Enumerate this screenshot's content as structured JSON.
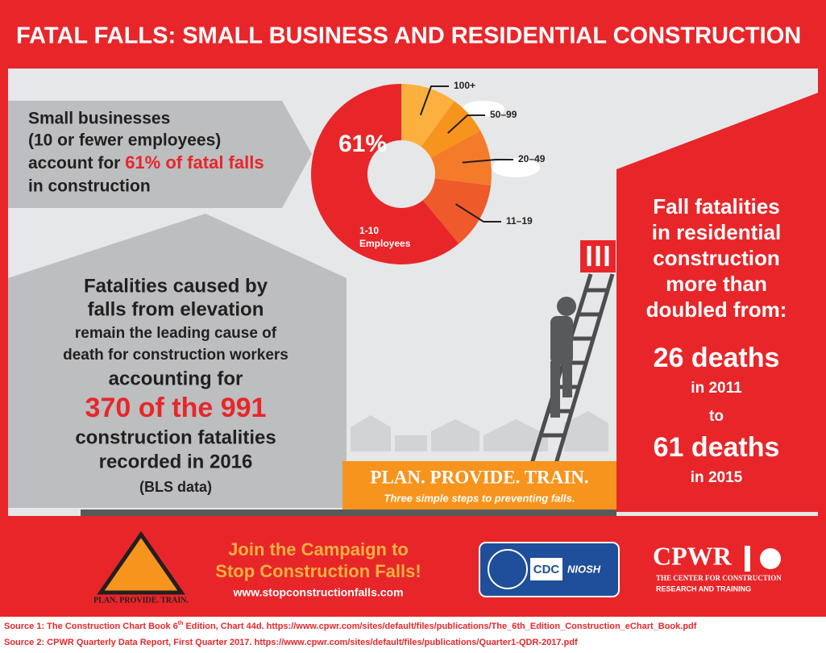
{
  "title": "FATAL FALLS: SMALL BUSINESS AND RESIDENTIAL CONSTRUCTION",
  "small_business": {
    "line1": "Small businesses",
    "line2": "(10 or fewer employees)",
    "line3": "account for",
    "highlight": "61% of fatal falls",
    "line4": "in construction"
  },
  "chart_data": {
    "type": "pie",
    "donut": true,
    "categories": [
      "100+",
      "50–99",
      "20–49",
      "11–19",
      "1-10 Employees"
    ],
    "values": [
      10,
      7,
      10,
      12,
      61
    ],
    "value_labels": [
      null,
      null,
      null,
      null,
      "61%"
    ],
    "colors": [
      "#fbb040",
      "#f7941d",
      "#f47b2a",
      "#ef5a2b",
      "#e8262a"
    ]
  },
  "elevation": {
    "line1": "Fatalities caused by",
    "line2": "falls from elevation",
    "line3": "remain the leading cause of",
    "line4": "death for construction workers",
    "line5": "accounting for",
    "highlight": "370 of the 991",
    "line6": "construction fatalities",
    "line7": "recorded in 2016",
    "line8": "(BLS data)"
  },
  "residential": {
    "line1": "Fall fatalities",
    "line2": "in residential",
    "line3": "construction",
    "line4": "more than",
    "line5": "doubled from:",
    "first": "26 deaths",
    "first_year": "in 2011",
    "to": "to",
    "second": "61 deaths",
    "second_year": "in 2015"
  },
  "banner": {
    "title": "PLAN. PROVIDE. TRAIN.",
    "subtitle": "Three simple steps to preventing falls."
  },
  "campaign": {
    "logo_caption": "PLAN. PROVIDE. TRAIN.",
    "heading1": "Join the Campaign to",
    "heading2": "Stop Construction Falls!",
    "url": "www.stopconstructionfalls.com"
  },
  "logos": {
    "cdc": "CDC",
    "niosh": "NIOSH",
    "cpwr": "CPWR",
    "cpwr_sub1": "THE CENTER FOR CONSTRUCTION",
    "cpwr_sub2": "RESEARCH AND TRAINING"
  },
  "sources": [
    {
      "pre": "Source 1: The Construction Chart Book 6",
      "sup": "th",
      "post": " Edition, Chart 44d. https://www.cpwr.com/sites/default/files/publications/The_6th_Edition_Construction_eChart_Book.pdf"
    },
    {
      "pre": "Source 2: CPWR Quarterly Data Report, First Quarter 2017. https://www.cpwr.com/sites/default/files/publications/Quarter1-QDR-2017.pdf"
    }
  ]
}
